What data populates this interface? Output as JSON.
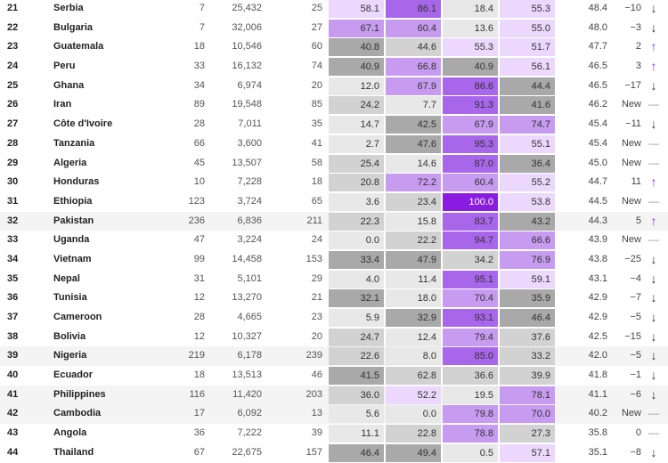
{
  "palette": {
    "L1": "#ecd8fc",
    "P2": "#c79bf0",
    "P3": "#a866ea",
    "P4": "#8a1be0",
    "G1": "#e8e8e8",
    "G2": "#d2d2d2",
    "G3": "#a9a9a9",
    "up": "#8a2be2",
    "down": "#333333",
    "flat": "#9a9a9a"
  },
  "rows": [
    {
      "rank": "21",
      "country": "Serbia",
      "c3": "7",
      "c4": "25,432",
      "c5": "25",
      "cells": [
        [
          "58.1",
          "L1"
        ],
        [
          "86.1",
          "P3"
        ],
        [
          "18.4",
          "G1"
        ],
        [
          "55.3",
          "L1"
        ]
      ],
      "score": "48.4",
      "change": "−10",
      "trend": "down"
    },
    {
      "rank": "22",
      "country": "Bulgaria",
      "c3": "7",
      "c4": "32,006",
      "c5": "27",
      "cells": [
        [
          "67.1",
          "P2"
        ],
        [
          "60.4",
          "P2"
        ],
        [
          "13.6",
          "G1"
        ],
        [
          "55.0",
          "L1"
        ]
      ],
      "score": "48.0",
      "change": "−3",
      "trend": "down"
    },
    {
      "rank": "23",
      "country": "Guatemala",
      "c3": "18",
      "c4": "10,546",
      "c5": "60",
      "cells": [
        [
          "40.8",
          "G3"
        ],
        [
          "44.6",
          "G2"
        ],
        [
          "55.3",
          "L1"
        ],
        [
          "51.7",
          "L1"
        ]
      ],
      "score": "47.7",
      "change": "2",
      "trend": "up"
    },
    {
      "rank": "24",
      "country": "Peru",
      "c3": "33",
      "c4": "16,132",
      "c5": "74",
      "cells": [
        [
          "40.9",
          "G3"
        ],
        [
          "66.8",
          "P2"
        ],
        [
          "40.9",
          "G3"
        ],
        [
          "56.1",
          "L1"
        ]
      ],
      "score": "46.5",
      "change": "3",
      "trend": "up"
    },
    {
      "rank": "25",
      "country": "Ghana",
      "c3": "34",
      "c4": "6,974",
      "c5": "20",
      "cells": [
        [
          "12.0",
          "G1"
        ],
        [
          "67.9",
          "P2"
        ],
        [
          "86.6",
          "P3"
        ],
        [
          "44.4",
          "G3"
        ]
      ],
      "score": "46.5",
      "change": "−17",
      "trend": "down"
    },
    {
      "rank": "26",
      "country": "Iran",
      "c3": "89",
      "c4": "19,548",
      "c5": "85",
      "cells": [
        [
          "24.2",
          "G2"
        ],
        [
          "7.7",
          "G1"
        ],
        [
          "91.3",
          "P3"
        ],
        [
          "41.6",
          "G3"
        ]
      ],
      "score": "46.2",
      "change": "New",
      "trend": "flat"
    },
    {
      "rank": "27",
      "country": "Côte d'Ivoire",
      "c3": "28",
      "c4": "7,011",
      "c5": "35",
      "cells": [
        [
          "14.7",
          "G1"
        ],
        [
          "42.5",
          "G3"
        ],
        [
          "67.9",
          "P2"
        ],
        [
          "74.7",
          "P2"
        ]
      ],
      "score": "45.4",
      "change": "−11",
      "trend": "down"
    },
    {
      "rank": "28",
      "country": "Tanzania",
      "c3": "66",
      "c4": "3,600",
      "c5": "41",
      "cells": [
        [
          "2.7",
          "G1"
        ],
        [
          "47.6",
          "G3"
        ],
        [
          "95.3",
          "P3"
        ],
        [
          "55.1",
          "L1"
        ]
      ],
      "score": "45.4",
      "change": "New",
      "trend": "flat"
    },
    {
      "rank": "29",
      "country": "Algeria",
      "c3": "45",
      "c4": "13,507",
      "c5": "58",
      "cells": [
        [
          "25.4",
          "G2"
        ],
        [
          "14.6",
          "G1"
        ],
        [
          "87.0",
          "P3"
        ],
        [
          "36.4",
          "G3"
        ]
      ],
      "score": "45.0",
      "change": "New",
      "trend": "flat"
    },
    {
      "rank": "30",
      "country": "Honduras",
      "c3": "10",
      "c4": "7,228",
      "c5": "18",
      "cells": [
        [
          "20.8",
          "G2"
        ],
        [
          "72.2",
          "P2"
        ],
        [
          "60.4",
          "P2"
        ],
        [
          "55.2",
          "L1"
        ]
      ],
      "score": "44.7",
      "change": "11",
      "trend": "up"
    },
    {
      "rank": "31",
      "country": "Ethiopia",
      "c3": "123",
      "c4": "3,724",
      "c5": "65",
      "cells": [
        [
          "3.6",
          "G1"
        ],
        [
          "23.4",
          "G2"
        ],
        [
          "100.0",
          "P4"
        ],
        [
          "53.8",
          "L1"
        ]
      ],
      "score": "44.5",
      "change": "New",
      "trend": "flat"
    },
    {
      "rank": "32",
      "country": "Pakistan",
      "c3": "236",
      "c4": "6,836",
      "c5": "211",
      "cells": [
        [
          "22.3",
          "G2"
        ],
        [
          "15.8",
          "G1"
        ],
        [
          "83.7",
          "P3"
        ],
        [
          "43.2",
          "G3"
        ]
      ],
      "score": "44.3",
      "change": "5",
      "trend": "up",
      "shade": true
    },
    {
      "rank": "33",
      "country": "Uganda",
      "c3": "47",
      "c4": "3,224",
      "c5": "24",
      "cells": [
        [
          "0.0",
          "G1"
        ],
        [
          "22.2",
          "G2"
        ],
        [
          "94.7",
          "P3"
        ],
        [
          "66.6",
          "P2"
        ]
      ],
      "score": "43.9",
      "change": "New",
      "trend": "flat"
    },
    {
      "rank": "34",
      "country": "Vietnam",
      "c3": "99",
      "c4": "14,458",
      "c5": "153",
      "cells": [
        [
          "33.4",
          "G3"
        ],
        [
          "47.9",
          "G3"
        ],
        [
          "34.2",
          "G2"
        ],
        [
          "76.9",
          "P2"
        ]
      ],
      "score": "43.8",
      "change": "−25",
      "trend": "down"
    },
    {
      "rank": "35",
      "country": "Nepal",
      "c3": "31",
      "c4": "5,101",
      "c5": "29",
      "cells": [
        [
          "4.0",
          "G1"
        ],
        [
          "11.4",
          "G1"
        ],
        [
          "95.1",
          "P3"
        ],
        [
          "59.1",
          "L1"
        ]
      ],
      "score": "43.1",
      "change": "−4",
      "trend": "down"
    },
    {
      "rank": "36",
      "country": "Tunisia",
      "c3": "12",
      "c4": "13,270",
      "c5": "21",
      "cells": [
        [
          "32.1",
          "G3"
        ],
        [
          "18.0",
          "G1"
        ],
        [
          "70.4",
          "P2"
        ],
        [
          "35.9",
          "G3"
        ]
      ],
      "score": "42.9",
      "change": "−7",
      "trend": "down"
    },
    {
      "rank": "37",
      "country": "Cameroon",
      "c3": "28",
      "c4": "4,665",
      "c5": "23",
      "cells": [
        [
          "5.9",
          "G1"
        ],
        [
          "32.9",
          "G3"
        ],
        [
          "93.1",
          "P3"
        ],
        [
          "46.4",
          "G3"
        ]
      ],
      "score": "42.9",
      "change": "−5",
      "trend": "down"
    },
    {
      "rank": "38",
      "country": "Bolivia",
      "c3": "12",
      "c4": "10,327",
      "c5": "20",
      "cells": [
        [
          "24.7",
          "G2"
        ],
        [
          "12.4",
          "G1"
        ],
        [
          "79.4",
          "P2"
        ],
        [
          "37.6",
          "G2"
        ]
      ],
      "score": "42.5",
      "change": "−15",
      "trend": "down"
    },
    {
      "rank": "39",
      "country": "Nigeria",
      "c3": "219",
      "c4": "6,178",
      "c5": "239",
      "cells": [
        [
          "22.6",
          "G2"
        ],
        [
          "8.0",
          "G1"
        ],
        [
          "85.0",
          "P3"
        ],
        [
          "33.2",
          "G2"
        ]
      ],
      "score": "42.0",
      "change": "−5",
      "trend": "down",
      "shade": true
    },
    {
      "rank": "40",
      "country": "Ecuador",
      "c3": "18",
      "c4": "13,513",
      "c5": "46",
      "cells": [
        [
          "41.5",
          "G3"
        ],
        [
          "62.8",
          "G2"
        ],
        [
          "36.6",
          "G2"
        ],
        [
          "39.9",
          "G2"
        ]
      ],
      "score": "41.8",
      "change": "−1",
      "trend": "down"
    },
    {
      "rank": "41",
      "country": "Philippines",
      "c3": "116",
      "c4": "11,420",
      "c5": "203",
      "cells": [
        [
          "36.0",
          "G2"
        ],
        [
          "52.2",
          "L1"
        ],
        [
          "19.5",
          "G1"
        ],
        [
          "78.1",
          "P2"
        ]
      ],
      "score": "41.1",
      "change": "−6",
      "trend": "down",
      "shade": true
    },
    {
      "rank": "42",
      "country": "Cambodia",
      "c3": "17",
      "c4": "6,092",
      "c5": "13",
      "cells": [
        [
          "5.6",
          "G1"
        ],
        [
          "0.0",
          "G1"
        ],
        [
          "79.8",
          "P2"
        ],
        [
          "70.0",
          "P2"
        ]
      ],
      "score": "40.2",
      "change": "New",
      "trend": "flat",
      "shade": true
    },
    {
      "rank": "43",
      "country": "Angola",
      "c3": "36",
      "c4": "7,222",
      "c5": "39",
      "cells": [
        [
          "11.1",
          "G1"
        ],
        [
          "22.8",
          "G2"
        ],
        [
          "78.8",
          "P2"
        ],
        [
          "27.3",
          "G2"
        ]
      ],
      "score": "35.8",
      "change": "0",
      "trend": "flat"
    },
    {
      "rank": "44",
      "country": "Thailand",
      "c3": "67",
      "c4": "22,675",
      "c5": "157",
      "cells": [
        [
          "46.4",
          "G3"
        ],
        [
          "49.4",
          "G3"
        ],
        [
          "0.5",
          "G1"
        ],
        [
          "57.1",
          "L1"
        ]
      ],
      "score": "35.1",
      "change": "−8",
      "trend": "down"
    }
  ]
}
